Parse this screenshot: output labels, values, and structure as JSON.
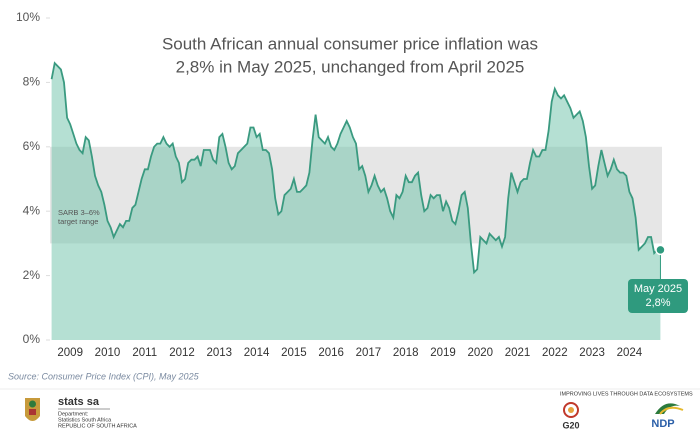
{
  "chart_data": {
    "type": "area",
    "title": [
      "South African annual consumer price inflation was",
      "2,8% in May 2025, unchanged from April 2025"
    ],
    "categories": [
      null,
      null,
      null,
      null,
      null,
      null,
      "2009",
      null,
      null,
      null,
      null,
      null,
      null,
      null,
      null,
      null,
      null,
      null,
      "2010",
      null,
      null,
      null,
      null,
      null,
      null,
      null,
      null,
      null,
      null,
      null,
      "2011",
      null,
      null,
      null,
      null,
      null,
      null,
      null,
      null,
      null,
      null,
      null,
      "2012",
      null,
      null,
      null,
      null,
      null,
      null,
      null,
      null,
      null,
      null,
      null,
      "2013",
      null,
      null,
      null,
      null,
      null,
      null,
      null,
      null,
      null,
      null,
      null,
      "2014",
      null,
      null,
      null,
      null,
      null,
      null,
      null,
      null,
      null,
      null,
      null,
      "2015",
      null,
      null,
      null,
      null,
      null,
      null,
      null,
      null,
      null,
      null,
      null,
      "2016",
      null,
      null,
      null,
      null,
      null,
      null,
      null,
      null,
      null,
      null,
      null,
      "2017",
      null,
      null,
      null,
      null,
      null,
      null,
      null,
      null,
      null,
      null,
      null,
      "2018",
      null,
      null,
      null,
      null,
      null,
      null,
      null,
      null,
      null,
      null,
      null,
      "2019",
      null,
      null,
      null,
      null,
      null,
      null,
      null,
      null,
      null,
      null,
      null,
      "2020",
      null,
      null,
      null,
      null,
      null,
      null,
      null,
      null,
      null,
      null,
      null,
      "2021",
      null,
      null,
      null,
      null,
      null,
      null,
      null,
      null,
      null,
      null,
      null,
      "2022",
      null,
      null,
      null,
      null,
      null,
      null,
      null,
      null,
      null,
      null,
      null,
      "2023",
      null,
      null,
      null,
      null,
      null,
      null,
      null,
      null,
      null,
      null,
      null,
      "2024",
      null,
      null,
      null,
      null,
      null,
      null,
      null,
      null,
      null,
      null
    ],
    "values": [
      8.1,
      8.6,
      8.5,
      8.4,
      8.0,
      6.9,
      6.7,
      6.4,
      6.1,
      5.9,
      5.8,
      6.3,
      6.2,
      5.7,
      5.1,
      4.8,
      4.6,
      4.2,
      3.7,
      3.5,
      3.2,
      3.4,
      3.6,
      3.5,
      3.7,
      3.7,
      4.1,
      4.2,
      4.6,
      5.0,
      5.3,
      5.3,
      5.7,
      6.0,
      6.1,
      6.1,
      6.3,
      6.1,
      6.0,
      6.1,
      5.7,
      5.5,
      4.9,
      5.0,
      5.5,
      5.6,
      5.6,
      5.7,
      5.4,
      5.9,
      5.9,
      5.9,
      5.6,
      5.5,
      6.3,
      6.4,
      6.0,
      5.5,
      5.3,
      5.4,
      5.8,
      5.9,
      6.0,
      6.1,
      6.6,
      6.6,
      6.3,
      6.4,
      5.9,
      5.9,
      5.8,
      5.3,
      4.4,
      3.9,
      4.0,
      4.5,
      4.6,
      4.7,
      5.0,
      4.6,
      4.6,
      4.7,
      4.8,
      5.2,
      6.2,
      7.0,
      6.3,
      6.2,
      6.1,
      6.3,
      6.0,
      5.9,
      6.1,
      6.4,
      6.6,
      6.8,
      6.6,
      6.3,
      6.1,
      5.3,
      5.4,
      5.1,
      4.6,
      4.8,
      5.1,
      4.8,
      4.6,
      4.7,
      4.4,
      4.0,
      3.8,
      4.5,
      4.4,
      4.6,
      5.1,
      4.9,
      4.9,
      5.1,
      5.2,
      4.5,
      4.0,
      4.1,
      4.5,
      4.4,
      4.5,
      4.5,
      4.0,
      4.3,
      4.1,
      3.7,
      3.6,
      4.0,
      4.5,
      4.6,
      4.1,
      3.0,
      2.1,
      2.2,
      3.2,
      3.1,
      3.0,
      3.3,
      3.2,
      3.1,
      3.2,
      2.9,
      3.2,
      4.4,
      5.2,
      4.9,
      4.6,
      4.9,
      5.0,
      5.0,
      5.5,
      5.9,
      5.7,
      5.7,
      5.9,
      5.9,
      6.5,
      7.4,
      7.8,
      7.6,
      7.5,
      7.6,
      7.4,
      7.2,
      6.9,
      7.0,
      7.1,
      6.8,
      6.3,
      5.4,
      4.7,
      4.8,
      5.4,
      5.9,
      5.5,
      5.1,
      5.3,
      5.6,
      5.3,
      5.2,
      5.2,
      5.1,
      4.6,
      4.4,
      3.8,
      2.8,
      2.9,
      3.0,
      3.2,
      3.2,
      2.7,
      2.8,
      2.8
    ],
    "line_color": "#3a9a80",
    "fill_color": "#6cc1a8",
    "band_color": "#e6e6e6",
    "target_band": [
      3,
      6
    ],
    "target_band_label": [
      "SARB 3–6%",
      "target range"
    ],
    "annotation": [
      "May 2025",
      "2,8%"
    ],
    "annotation_color": "#2f9a7e",
    "ylim": [
      0,
      10
    ],
    "yticks": [
      {
        "value": 0,
        "label": "0%"
      },
      {
        "value": 2,
        "label": "2%"
      },
      {
        "value": 4,
        "label": "4%"
      },
      {
        "value": 6,
        "label": "6%"
      },
      {
        "value": 8,
        "label": "8%"
      },
      {
        "value": 10,
        "label": "10%"
      }
    ],
    "source": "Source: Consumer Price Index (CPI), May 2025"
  },
  "footer": {
    "brand": "stats sa",
    "department": "Department:",
    "dept_name": "Statistics South Africa",
    "country": "REPUBLIC OF SOUTH AFRICA",
    "slogan": "IMPROVING LIVES THROUGH DATA ECOSYSTEMS",
    "g20": "G20",
    "ndp": "NDP"
  }
}
